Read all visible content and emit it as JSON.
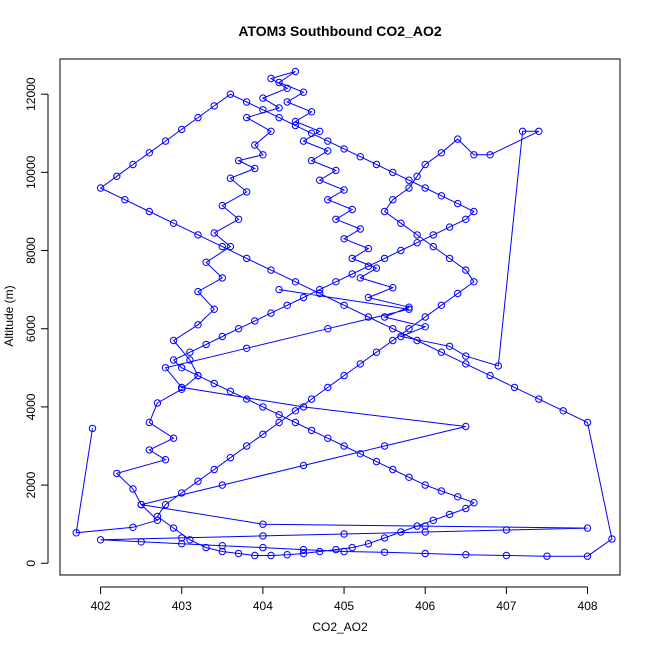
{
  "chart_data": {
    "type": "scatter",
    "title": "ATOM3 Southbound CO2_AO2",
    "xlabel": "CO2_AO2",
    "ylabel": "Altitude (m)",
    "xlim": [
      401.5,
      408.4
    ],
    "ylim": [
      -300,
      12900
    ],
    "xticks": [
      402,
      403,
      404,
      405,
      406,
      407,
      408
    ],
    "yticks": [
      0,
      2000,
      4000,
      6000,
      8000,
      10000,
      12000
    ],
    "grid": false,
    "legend": "none",
    "series": [
      {
        "style": "line+points",
        "color": "#0000ff",
        "x": [
          401.9,
          401.7,
          402.4,
          402.7,
          402.5,
          402.4,
          402.2,
          402.8,
          402.6,
          402.9,
          402.6,
          402.7,
          403.0,
          403.2,
          403.1,
          402.9,
          403.2,
          403.4,
          403.2,
          403.5,
          403.3,
          403.6,
          403.4,
          403.7,
          403.5,
          403.8,
          403.6,
          403.9,
          403.7,
          404.0,
          403.9,
          404.1,
          403.8,
          404.2,
          404.0,
          404.3,
          404.1,
          404.4,
          404.2,
          404.5,
          404.3,
          404.6,
          404.4,
          404.7,
          404.5,
          404.8,
          404.6,
          404.9,
          404.7,
          405.0,
          404.8,
          405.1,
          404.9,
          405.2,
          405.0,
          405.3,
          405.1,
          405.4,
          405.2,
          405.6,
          405.3,
          405.8,
          405.5,
          406.0,
          405.7,
          406.3,
          406.5,
          406.9,
          407.2,
          407.4,
          406.8,
          406.6,
          406.4,
          406.2,
          406.0,
          405.9,
          405.8,
          405.6,
          405.5,
          405.7,
          405.9,
          406.1,
          406.3,
          406.5,
          406.6,
          406.4,
          406.2,
          406.0,
          405.8,
          405.6,
          405.4,
          405.2,
          405.0,
          404.8,
          404.6,
          404.4,
          404.2,
          404.0,
          403.8,
          403.6,
          403.4,
          403.2,
          403.0,
          402.8,
          402.7,
          402.9,
          403.1,
          403.3,
          403.5,
          403.7,
          403.9,
          404.1,
          404.3,
          404.5,
          404.7,
          404.9,
          405.1,
          405.3,
          405.5,
          405.7,
          405.9,
          406.1,
          406.3,
          406.5,
          406.6,
          406.4,
          406.2,
          406.0,
          405.8,
          405.6,
          405.4,
          405.2,
          405.0,
          404.8,
          404.6,
          404.4,
          404.2,
          404.0,
          403.8,
          403.6,
          403.4,
          403.2,
          403.0,
          402.9,
          403.1,
          403.3,
          403.5,
          403.7,
          403.9,
          404.1,
          404.3,
          404.5,
          404.7,
          404.9,
          405.1,
          405.3,
          405.5,
          405.7,
          405.9,
          406.1,
          406.3,
          406.5,
          406.6,
          406.4,
          406.2,
          406.0,
          405.8,
          405.6,
          405.4,
          405.2,
          405.0,
          404.8,
          404.6,
          404.4,
          404.2,
          404.0,
          403.8,
          403.6,
          403.4,
          403.2,
          403.0,
          402.8,
          402.6,
          402.4,
          402.2,
          402.0,
          402.3,
          402.6,
          402.9,
          403.2,
          403.5,
          403.8,
          404.1,
          404.4,
          404.7,
          405.0,
          405.3,
          405.6,
          405.9,
          406.2,
          406.5,
          406.8,
          407.1,
          407.4,
          407.7,
          408.0,
          408.3,
          408.0,
          407.5,
          407.0,
          406.5,
          406.0,
          405.5,
          405.0,
          404.5,
          404.0,
          403.5,
          403.0,
          402.5,
          402.0,
          403.0,
          404.0,
          405.0,
          406.0,
          407.0,
          408.0,
          406.0,
          404.0,
          402.5,
          403.5,
          404.5,
          405.5,
          406.5,
          404.5,
          403.0,
          402.8,
          403.8,
          404.8,
          405.8,
          404.2
        ],
        "y": [
          3450,
          780,
          920,
          1100,
          1500,
          1900,
          2300,
          2650,
          2900,
          3200,
          3600,
          4100,
          4450,
          4800,
          5200,
          5700,
          6100,
          6500,
          6950,
          7300,
          7700,
          8100,
          8450,
          8800,
          9150,
          9500,
          9850,
          10100,
          10300,
          10450,
          10700,
          11050,
          11400,
          11650,
          11900,
          12150,
          12400,
          12580,
          12300,
          12050,
          11800,
          11550,
          11300,
          11050,
          10800,
          10550,
          10300,
          10050,
          9800,
          9550,
          9300,
          9050,
          8800,
          8550,
          8300,
          8050,
          7800,
          7550,
          7300,
          7050,
          6800,
          6550,
          6300,
          6050,
          5800,
          5550,
          5300,
          5050,
          11050,
          11050,
          10450,
          10450,
          10850,
          10500,
          10200,
          9900,
          9600,
          9300,
          9000,
          8700,
          8400,
          8100,
          7800,
          7500,
          7200,
          6900,
          6600,
          6300,
          6000,
          5700,
          5400,
          5100,
          4800,
          4500,
          4200,
          3900,
          3600,
          3300,
          3000,
          2700,
          2400,
          2100,
          1800,
          1500,
          1200,
          900,
          600,
          400,
          300,
          250,
          200,
          200,
          220,
          250,
          300,
          350,
          400,
          500,
          650,
          800,
          950,
          1100,
          1250,
          1400,
          1550,
          1700,
          1850,
          2000,
          2200,
          2400,
          2600,
          2800,
          3000,
          3200,
          3400,
          3600,
          3800,
          4000,
          4200,
          4400,
          4600,
          4800,
          5000,
          5200,
          5400,
          5600,
          5800,
          6000,
          6200,
          6400,
          6600,
          6800,
          7000,
          7200,
          7400,
          7600,
          7800,
          8000,
          8200,
          8400,
          8600,
          8800,
          9000,
          9200,
          9400,
          9600,
          9800,
          10000,
          10200,
          10400,
          10600,
          10800,
          11000,
          11200,
          11400,
          11600,
          11800,
          12000,
          11700,
          11400,
          11100,
          10800,
          10500,
          10200,
          9900,
          9600,
          9300,
          9000,
          8700,
          8400,
          8100,
          7800,
          7500,
          7200,
          6900,
          6600,
          6300,
          6000,
          5700,
          5400,
          5100,
          4800,
          4500,
          4200,
          3900,
          3600,
          620,
          180,
          180,
          200,
          220,
          250,
          280,
          300,
          350,
          400,
          450,
          500,
          550,
          600,
          650,
          700,
          750,
          800,
          850,
          900,
          950,
          1000,
          1500,
          2000,
          2500,
          3000,
          3500,
          4000,
          4500,
          5000,
          5500,
          6000,
          6500,
          7000
        ]
      }
    ]
  }
}
